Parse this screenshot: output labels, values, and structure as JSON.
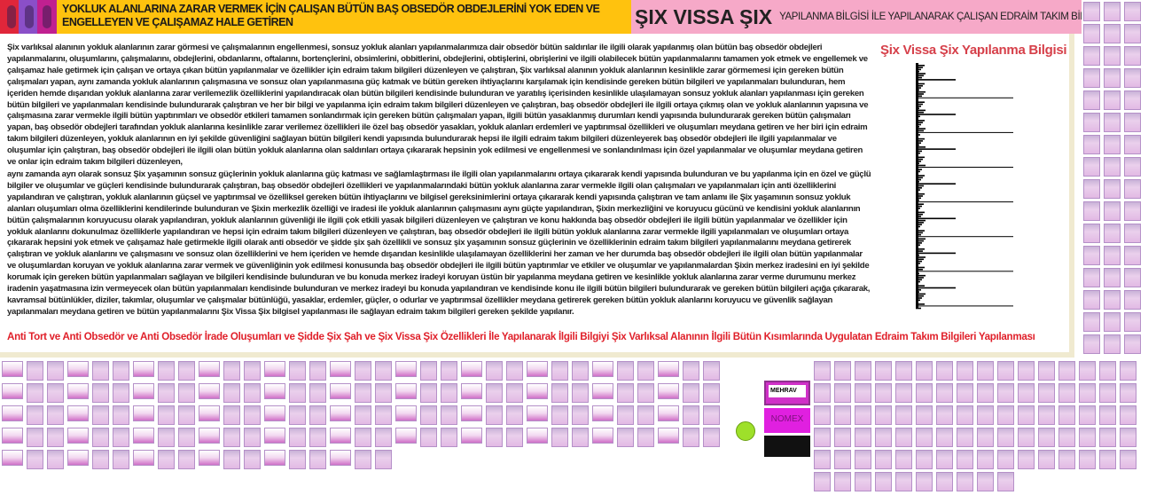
{
  "header": {
    "title": "YOKLUK ALANLARINA ZARAR VERMEK İÇİN ÇALIŞAN BÜTÜN BAŞ OBSEDÖR OBDEJLERİNİ YOK EDEN VE ENGELLEYEN VE ÇALIŞAMAZ HALE GETİREN",
    "brand": "ŞIX VISSA ŞIX",
    "brand_subtitle": "YAPILANMA BİLGİSİ İLE YAPILANARAK ÇALIŞAN EDRAİM TAKIM BİLGİLERİ",
    "header_color": "#ffc20e",
    "brand_color": "#f6a9c8"
  },
  "main": {
    "paragraphs": [
      "Şix varlıksal alanının yokluk alanlarının zarar görmesi ve çalışmalarının engellenmesi, sonsuz yokluk alanları yapılanmalarımıza dair obsedör bütün saldırılar ile ilgili olarak yapılanmış olan bütün baş obsedör obdejleri yapılanmalarını, oluşumlarını, çalışmalarını, obdejlerini, obdanlarını, oftalarını, bortençlerini, obsimlerini, obbitlerini, obdejlerini, obtişlerini, obrişlerini ve ilgili olabilecek bütün yapılanmalarını tamamen yok etmek ve engellemek ve çalışamaz hale getirmek için çalışan ve ortaya çıkan bütün yapılanmalar ve özellikler için edraim takım bilgileri düzenleyen ve çalıştıran, Şix varlıksal alanının yokluk alanlarının kesinlikle zarar görmemesi için gereken bütün çalışmaları yapan, aynı zamanda yokluk alanlarının çalışmasına ve sonsuz olan yapılanmasına güç katmak ve bütün gereken ihtiyaçlarını karşılamak için kendisinde gereken bütün bilgileri ve yapılanmaları bulunduran, hem içeriden hemde dışarıdan yokluk alanlarına zarar verilemezlik özelliklerini yapılandıracak olan bütün bilgileri kendisinde bulunduran ve yaratılış içerisinden kesinlikle ulaşılamayan sonsuz yokluk alanları yapılanması için gereken bütün bilgileri ve yapılanmaları kendisinde bulundurarak çalıştıran ve her bir bilgi ve yapılanma için edraim takım bilgileri düzenleyen ve çalıştıran, baş obsedör obdejleri ile ilgili ortaya çıkmış olan ve yokluk alanlarının yapısına ve çalışmasına zarar vermekle ilgili bütün yaptırımları ve obsedör etkileri tamamen sonlandırmak için gereken bütün çalışmaları yapan, ilgili bütün yasaklanmış durumları kendi yapısında bulundurarak gereken bütün çalışmaları yapan, baş obsedör obdejleri tarafından yokluk alanlarına kesinlikle zarar verilemez özellikleri ile özel baş obsedör yasakları, yokluk alanları erdemleri ve yaptırımsal özellikleri ve oluşumları meydana getiren ve her biri için edraim takım bilgileri düzenleyen, yokluk alanlarının en iyi şekilde güvenliğini sağlayan bütün bilgileri kendi yapısında bulundurarak hepsi ile ilgili edraim takım bilgileri düzenleyerek baş obsedör obdejleri ile ilgili yapılanmalar ve oluşumlar için çalıştıran, baş obsedör obdejleri ile ilgili olan bütün yokluk alanlarına olan saldırıları ortaya çıkararak hepsinin yok edilmesi ve engellenmesi ve sonlandırılması için özel yapılanmalar ve oluşumlar meydana getiren ve onlar için edraim takım bilgileri düzenleyen,",
      " aynı zamanda ayrı olarak sonsuz Şix yaşamının sonsuz güçlerinin yokluk alanlarına güç katması ve sağlamlaştırması ile ilgili olan yapılanmalarını ortaya çıkararak kendi yapısında bulunduran ve bu yapılanma için en özel ve güçlü bilgiler ve oluşumlar ve güçleri kendisinde bulundurarak çalıştıran, baş obsedör obdejleri özellikleri ve yapılanmalarındaki bütün yokluk alanlarına zarar vermekle ilgili olan çalışmaları ve yapılanmaları için anti özelliklerini yapılandıran ve çalıştıran, yokluk alanlarının güçsel ve yaptırımsal ve özelliksel gereken bütün ihtiyaçlarını ve bilgisel gereksinimlerini ortaya çıkararak kendi yapısında çalıştıran ve tam anlamı ile Şix yaşamının sonsuz yokluk alanları oluşumları olma özelliklerini kendilerinde bulunduran ve Şixin merkezlik özelliği ve iradesi ile yokluk alanlarının çalışmasını aynı güçte yapılandıran, Şixin merkezliğini ve koruyucu gücünü ve kendisini yokluk alanlarının bütün çalışmalarının koruyucusu olarak yapılandıran, yokluk alanlarının  güvenliği ile ilgili çok etkili yasak bilgileri düzenleyen ve çalıştıran ve konu hakkında baş obsedör obdejleri ile ilgili bütün yapılanmalar ve özellikler için yokluk alanlarını dokunulmaz özelliklerle yapılandıran ve hepsi için edraim takım bilgileri düzenleyen ve çalıştıran, baş obsedör obdejleri ile ilgili bütün yokluk alanlarına zarar vermekle ilgili yapılanmaları ve oluşumları ortaya  çıkararak hepsini yok etmek ve çalışamaz hale getirmekle ilgili olarak anti obsedör ve şidde şix şah özellikli ve sonsuz şix yaşamının sonsuz güçlerinin ve özelliklerinin edraim takım bilgileri yapılanmalarını meydana getirerek çalıştıran ve yokluk alanlarını ve çalışmasını ve sonsuz olan özelliklerini ve hem içeriden ve hemde dışarıdan kesinlikle ulaşılamayan özelliklerini her zaman ve her durumda baş obsedör obdejleri ile ilgili olan bütün yapılanmalar ve oluşumlardan koruyan ve yokluk alanlarına zarar vermek ve güvenliğinin yok edilmesi konusunda baş obsedör obdejleri ile ilgili bütün yaptırımlar ve etkiler ve oluşumlar ve yapılanmalardan Şixin merkez iradesini en iyi şekilde korumak için gereken bütün yapılanmaları sağlayan ve bilgileri kendisinde bulunduran ve bu konuda merkez iradeyi koruyan üstün bir yapılanma meydana getiren ve kesinlikle yokluk alanlarına zarar verme durumunu merkez iradenin yaşatmasına izin vermeyecek olan bütün yapılanmaları kendisinde bulunduran ve merkez iradeyi bu konuda yapılandıran ve kendisinde konu ile ilgili bütün bilgileri bulundurarak ve gereken bütün bilgileri açığa çıkararak, kavramsal bütünlükler, diziler, takımlar, oluşumlar ve çalışmalar bütünlüğü, yasaklar, erdemler, güçler, o odurlar ve yaptırımsal özellikler meydana getirerek gereken bütün yokluk alanlarını koruyucu ve güvenlik sağlayan yapılanmaları meydana getiren ve bütün yapılanmalarını Şix Vissa Şix bilgisel yapılanması ile sağlayan edraim takım bilgileri gereken şekilde yapılanır."
    ],
    "side_title": "Şix Vissa Şix Yapılanma Bilgisi",
    "footer": "Anti Tort ve Anti Obsedör ve Anti Obsedör İrade Oluşumları ve Şidde Şix Şah ve Şix Vissa Şix Özellikleri İle Yapılanarak İlgili Bilgiyi Şix Varlıksal Alanının İlgili Bütün Kısımlarında Uygulatan Edraim Takım Bilgileri Yapılanması",
    "accent_color": "#e0202a"
  },
  "thumbnails": {
    "ads": [
      "MEHRAV",
      "NOMEX"
    ],
    "icon": "smiley-icon"
  }
}
